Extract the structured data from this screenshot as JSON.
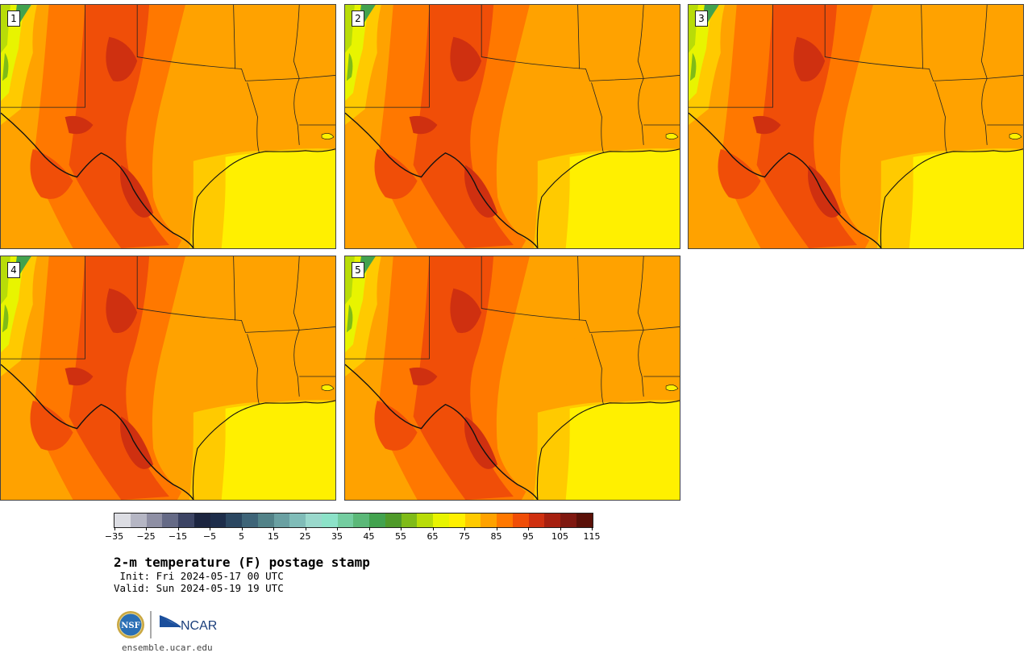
{
  "panels": [
    {
      "number": "1"
    },
    {
      "number": "2"
    },
    {
      "number": "3"
    },
    {
      "number": "4"
    },
    {
      "number": "5"
    }
  ],
  "colorbar": {
    "ticks": [
      "−35",
      "−25",
      "−15",
      "−5",
      "5",
      "15",
      "25",
      "35",
      "45",
      "55",
      "65",
      "75",
      "85",
      "95",
      "105",
      "115"
    ],
    "colors": [
      "#dcdde3",
      "#b5b6c4",
      "#8e8fa4",
      "#656a86",
      "#3c4464",
      "#1c2540",
      "#1d2d4a",
      "#2b4761",
      "#3e6478",
      "#528288",
      "#6aa0a2",
      "#80bcb8",
      "#9ad8cc",
      "#8ce2c8",
      "#74cda0",
      "#5bb878",
      "#42a24e",
      "#4f9a2a",
      "#7fbb18",
      "#b8dc08",
      "#e8f400",
      "#fff000",
      "#ffca00",
      "#ffa200",
      "#ff7800",
      "#f04e08",
      "#cf3010",
      "#a62010",
      "#7f1810",
      "#5a1008"
    ],
    "accent_oranges": [
      "#ffa200",
      "#ff7800",
      "#f04e08",
      "#cf3010"
    ]
  },
  "title": "2-m temperature (F) postage stamp",
  "init": " Init: Fri 2024-05-17 00 UTC",
  "valid": "Valid: Sun 2024-05-19 19 UTC",
  "logos": {
    "nsf": "NSF",
    "ncar": "NCAR"
  },
  "site": "ensemble.ucar.edu"
}
